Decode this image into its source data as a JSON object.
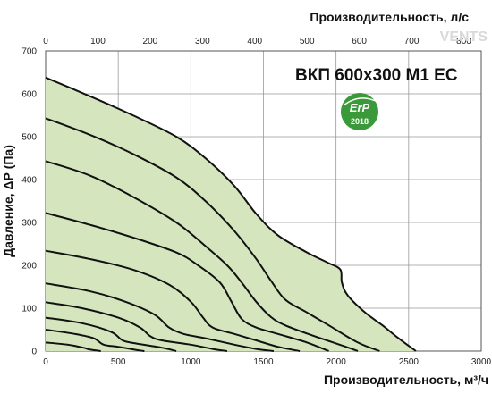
{
  "chart_data": {
    "type": "line",
    "title": "ВКП 600x300 М1 ЕС",
    "xlabel": "Производительность, м³/ч",
    "x2label": "Производительность, л/с",
    "ylabel": "Давление, ΔР (Па)",
    "xlim": [
      0,
      3000
    ],
    "ylim": [
      0,
      700
    ],
    "x2lim": [
      0,
      833.33
    ],
    "xticks": [
      "0",
      "500",
      "1000",
      "1500",
      "2000",
      "2500",
      "3000"
    ],
    "x2ticks": [
      "0",
      "100",
      "200",
      "300",
      "400",
      "500",
      "600",
      "700",
      "800"
    ],
    "yticks": [
      "0",
      "100",
      "200",
      "300",
      "400",
      "500",
      "600",
      "700"
    ],
    "grid": true,
    "fill_color": "#d5e5bd",
    "line_color": "#111111",
    "grid_color": "#999999",
    "envelope": [
      [
        0,
        638
      ],
      [
        300,
        595
      ],
      [
        600,
        550
      ],
      [
        900,
        500
      ],
      [
        1100,
        450
      ],
      [
        1300,
        385
      ],
      [
        1450,
        320
      ],
      [
        1600,
        270
      ],
      [
        1800,
        230
      ],
      [
        1950,
        205
      ],
      [
        2030,
        190
      ],
      [
        2040,
        160
      ],
      [
        2080,
        130
      ],
      [
        2200,
        90
      ],
      [
        2320,
        60
      ],
      [
        2430,
        30
      ],
      [
        2550,
        0
      ]
    ],
    "curves": [
      [
        [
          0,
          543
        ],
        [
          300,
          505
        ],
        [
          600,
          460
        ],
        [
          900,
          405
        ],
        [
          1100,
          350
        ],
        [
          1300,
          280
        ],
        [
          1450,
          215
        ],
        [
          1550,
          165
        ],
        [
          1650,
          120
        ],
        [
          1800,
          90
        ],
        [
          1950,
          60
        ],
        [
          2150,
          20
        ],
        [
          2300,
          0
        ]
      ],
      [
        [
          0,
          443
        ],
        [
          300,
          410
        ],
        [
          600,
          360
        ],
        [
          900,
          300
        ],
        [
          1100,
          245
        ],
        [
          1250,
          200
        ],
        [
          1350,
          160
        ],
        [
          1450,
          115
        ],
        [
          1550,
          80
        ],
        [
          1650,
          60
        ],
        [
          1850,
          35
        ],
        [
          2050,
          12
        ],
        [
          2150,
          0
        ]
      ],
      [
        [
          0,
          322
        ],
        [
          300,
          295
        ],
        [
          600,
          265
        ],
        [
          900,
          230
        ],
        [
          1050,
          200
        ],
        [
          1200,
          160
        ],
        [
          1280,
          115
        ],
        [
          1350,
          75
        ],
        [
          1450,
          55
        ],
        [
          1600,
          40
        ],
        [
          1800,
          20
        ],
        [
          1950,
          0
        ]
      ],
      [
        [
          0,
          234
        ],
        [
          300,
          215
        ],
        [
          600,
          190
        ],
        [
          850,
          155
        ],
        [
          1000,
          115
        ],
        [
          1080,
          80
        ],
        [
          1150,
          55
        ],
        [
          1300,
          40
        ],
        [
          1450,
          25
        ],
        [
          1600,
          10
        ],
        [
          1750,
          0
        ]
      ],
      [
        [
          0,
          158
        ],
        [
          300,
          140
        ],
        [
          550,
          115
        ],
        [
          750,
          85
        ],
        [
          850,
          55
        ],
        [
          950,
          40
        ],
        [
          1100,
          30
        ],
        [
          1300,
          15
        ],
        [
          1450,
          5
        ],
        [
          1570,
          0
        ]
      ],
      [
        [
          0,
          114
        ],
        [
          250,
          100
        ],
        [
          500,
          78
        ],
        [
          650,
          55
        ],
        [
          720,
          35
        ],
        [
          800,
          25
        ],
        [
          1000,
          15
        ],
        [
          1150,
          5
        ],
        [
          1250,
          0
        ]
      ],
      [
        [
          0,
          78
        ],
        [
          250,
          65
        ],
        [
          450,
          45
        ],
        [
          530,
          25
        ],
        [
          620,
          18
        ],
        [
          800,
          8
        ],
        [
          900,
          0
        ]
      ],
      [
        [
          0,
          50
        ],
        [
          200,
          40
        ],
        [
          330,
          30
        ],
        [
          400,
          15
        ],
        [
          500,
          10
        ],
        [
          620,
          3
        ],
        [
          680,
          0
        ]
      ],
      [
        [
          0,
          20
        ],
        [
          150,
          15
        ],
        [
          260,
          8
        ],
        [
          300,
          4
        ],
        [
          380,
          0
        ]
      ]
    ]
  },
  "badge": {
    "text": "ErP",
    "year": "2018",
    "color": "#3a9a3a"
  },
  "watermark": "VENTS"
}
